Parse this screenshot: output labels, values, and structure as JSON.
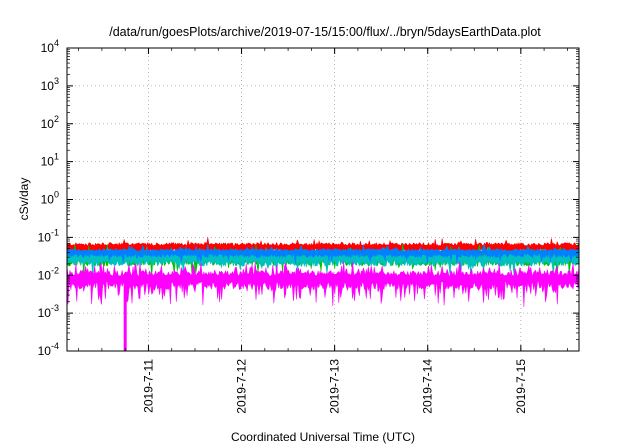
{
  "chart_data": {
    "type": "line",
    "title": "/data/run/goesPlots/archive/2019-07-15/15:00/flux/../bryn/5daysEarthData.plot",
    "xlabel": "Coordinated Universal Time (UTC)",
    "ylabel": "cSv/day",
    "yscale": "log",
    "ylim_exponents": [
      -4,
      4
    ],
    "y_ticks": [
      {
        "base": "10",
        "exp": "-4"
      },
      {
        "base": "10",
        "exp": "-3"
      },
      {
        "base": "10",
        "exp": "-2"
      },
      {
        "base": "10",
        "exp": "-1"
      },
      {
        "base": "10",
        "exp": "0"
      },
      {
        "base": "10",
        "exp": "1"
      },
      {
        "base": "10",
        "exp": "2"
      },
      {
        "base": "10",
        "exp": "3"
      },
      {
        "base": "10",
        "exp": "4"
      }
    ],
    "xlim": [
      "2019-07-10T03:00",
      "2019-07-15T15:00"
    ],
    "x_ticks": [
      {
        "value": "2019-07-11T00:00",
        "label": "2019-7-11"
      },
      {
        "value": "2019-07-12T00:00",
        "label": "2019-7-12"
      },
      {
        "value": "2019-07-13T00:00",
        "label": "2019-7-13"
      },
      {
        "value": "2019-07-14T00:00",
        "label": "2019-7-14"
      },
      {
        "value": "2019-07-15T00:00",
        "label": "2019-7-15"
      }
    ],
    "grid": true,
    "legend": "none",
    "series": [
      {
        "color": "#ff0000",
        "level": 0.055,
        "spread": 0.12,
        "spike_prob": 0.08
      },
      {
        "color": "#00c000",
        "level": 0.03,
        "spread": 0.18,
        "spike_prob": 0.05
      },
      {
        "color": "#00c0c0",
        "level": 0.028,
        "spread": 0.16,
        "spike_prob": 0.05
      },
      {
        "color": "#0080ff",
        "level": 0.04,
        "spread": 0.1,
        "spike_prob": 0.06
      },
      {
        "color": "#ff00ff",
        "level": 0.008,
        "spread": 0.22,
        "spike_prob": 0.25,
        "dropouts": [
          {
            "time": "2019-07-10T18:00",
            "value": 0.0001
          }
        ]
      }
    ]
  }
}
